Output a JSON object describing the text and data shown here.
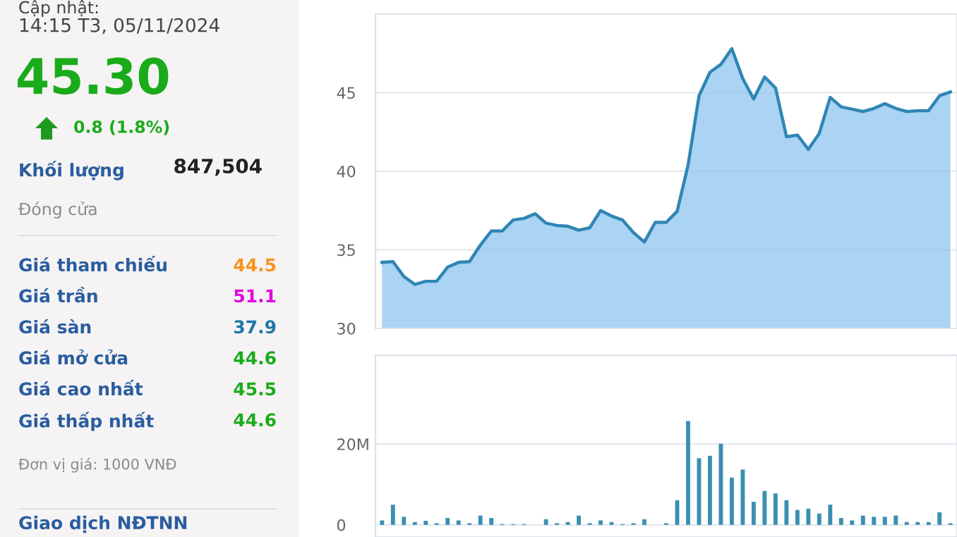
{
  "chart_data": [
    {
      "type": "other",
      "annotations": [
        "Cập nhật:",
        "14:15 T3, 05/11/2024",
        "45.30",
        "0.8 (1.8%)",
        "Khối lượng",
        "847,504",
        "Đóng cửa",
        "Giá tham chiếu",
        "44.5",
        "Giá trần",
        "51.1",
        "Giá sàn",
        "37.9",
        "Giá mở cửa",
        "44.6",
        "Giá cao nhất",
        "45.5",
        "Giá thấp nhất",
        "44.6",
        "Đơn vị giá: 1000 VNĐ",
        "Giao dịch NĐTNN"
      ]
    },
    {
      "type": "area",
      "categories": [
        null,
        null,
        null,
        null,
        null,
        null,
        null,
        null,
        null,
        null,
        null,
        null,
        null,
        null,
        null,
        null,
        null,
        null,
        null,
        null,
        null,
        null,
        null,
        null,
        null,
        null,
        null,
        null,
        null,
        null,
        null,
        null,
        null,
        null,
        null,
        null,
        null,
        null,
        null,
        null,
        null,
        null,
        null,
        null,
        null,
        null,
        null,
        null,
        null,
        null,
        null,
        null,
        null
      ],
      "values": [
        34.2,
        34.25,
        33.3,
        32.8,
        33.0,
        33.0,
        33.9,
        34.2,
        34.25,
        35.3,
        36.2,
        36.2,
        36.9,
        37.0,
        37.3,
        36.7,
        36.55,
        36.5,
        36.25,
        36.4,
        37.5,
        37.15,
        36.9,
        36.1,
        35.5,
        36.75,
        36.75,
        37.45,
        40.4,
        44.8,
        46.3,
        46.8,
        47.8,
        45.9,
        44.6,
        46.0,
        45.3,
        42.2,
        42.3,
        41.4,
        42.4,
        44.7,
        44.1,
        43.95,
        43.8,
        44.0,
        44.3,
        44.0,
        43.8,
        43.85,
        43.85,
        44.8,
        45.05
      ],
      "color": "#2f86b4",
      "ylim": [
        30,
        50
      ],
      "yticks": [
        30,
        35,
        40,
        45
      ],
      "grid": "y"
    },
    {
      "type": "bar",
      "categories": [
        null,
        null,
        null,
        null,
        null,
        null,
        null,
        null,
        null,
        null,
        null,
        null,
        null,
        null,
        null,
        null,
        null,
        null,
        null,
        null,
        null,
        null,
        null,
        null,
        null,
        null,
        null,
        null,
        null,
        null,
        null,
        null,
        null,
        null,
        null,
        null,
        null,
        null,
        null,
        null,
        null,
        null,
        null,
        null,
        null,
        null,
        null,
        null,
        null,
        null,
        null,
        null,
        null
      ],
      "values": [
        1.1,
        5.0,
        2.0,
        0.7,
        1.0,
        0.4,
        1.7,
        1.1,
        0.4,
        2.3,
        1.7,
        0.2,
        0.2,
        0.2,
        0,
        1.4,
        0.4,
        0.7,
        2.3,
        0.4,
        1.1,
        0.7,
        0.2,
        0.4,
        1.4,
        0,
        0.4,
        6.1,
        25.7,
        16.5,
        17.1,
        20.1,
        11.7,
        13.7,
        5.7,
        8.4,
        7.8,
        6.1,
        3.7,
        4.0,
        2.8,
        5.0,
        1.7,
        1.1,
        2.3,
        2.0,
        2.0,
        2.3,
        0.7,
        0.7,
        0.7,
        3.1,
        0.4
      ],
      "color": "#3a8fb2",
      "ylim": [
        -3,
        42
      ],
      "yticks": [
        0,
        {
          "value": 20,
          "label": "20M"
        }
      ],
      "grid": "y"
    }
  ]
}
